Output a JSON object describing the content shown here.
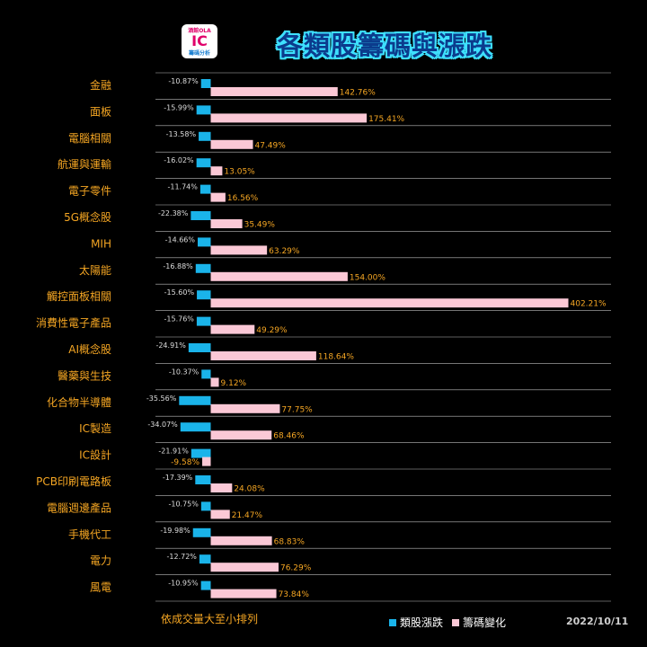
{
  "header": {
    "logo_text_top": "酒館OLA",
    "logo_mark": "IC",
    "logo_text_bottom": "籌碼分析",
    "title": "各類股籌碼與漲跌"
  },
  "footer": {
    "note": "依成交量大至小排列",
    "date": "2022/10/11"
  },
  "colors": {
    "background": "#000000",
    "negative_bar": "#1ab4ea",
    "positive_bar": "#fbc8d6",
    "label_orange": "#f5a623",
    "grid_line": "#bbbbbb"
  },
  "chart_data": {
    "type": "bar",
    "orientation": "horizontal",
    "categories": [
      "金融",
      "面板",
      "電腦相關",
      "航運與運輸",
      "電子零件",
      "5G概念股",
      "MIH",
      "太陽能",
      "觸控面板相關",
      "消費性電子產品",
      "AI概念股",
      "醫藥與生技",
      "化合物半導體",
      "IC製造",
      "IC設計",
      "PCB印刷電路板",
      "電腦週邊產品",
      "手機代工",
      "電力",
      "風電"
    ],
    "series": [
      {
        "name": "類股漲跌",
        "values": [
          -10.87,
          -15.99,
          -13.58,
          -16.02,
          -11.74,
          -22.38,
          -14.66,
          -16.88,
          -15.6,
          -15.76,
          -24.91,
          -10.37,
          -35.56,
          -34.07,
          -21.91,
          -17.39,
          -10.75,
          -19.98,
          -12.72,
          -10.95
        ],
        "labels": [
          "-10.87%",
          "-15.99%",
          "-13.58%",
          "-16.02%",
          "-11.74%",
          "-22.38%",
          "-14.66%",
          "-16.88%",
          "-15.60%",
          "-15.76%",
          "-24.91%",
          "-10.37%",
          "-35.56%",
          "-34.07%",
          "-21.91%",
          "-17.39%",
          "-10.75%",
          "-19.98%",
          "-12.72%",
          "-10.95%"
        ],
        "color": "#1ab4ea"
      },
      {
        "name": "籌碼變化",
        "values": [
          142.76,
          175.41,
          47.49,
          13.05,
          16.56,
          35.49,
          63.29,
          154.0,
          402.21,
          49.29,
          118.64,
          9.12,
          77.75,
          68.46,
          -9.58,
          24.08,
          21.47,
          68.83,
          76.29,
          73.84
        ],
        "labels": [
          "142.76%",
          "175.41%",
          "47.49%",
          "13.05%",
          "16.56%",
          "35.49%",
          "63.29%",
          "154.00%",
          "402.21%",
          "49.29%",
          "118.64%",
          "9.12%",
          "77.75%",
          "68.46%",
          "-9.58%",
          "24.08%",
          "21.47%",
          "68.83%",
          "76.29%",
          "73.84%"
        ],
        "color": "#fbc8d6"
      }
    ],
    "legend_position": "bottom",
    "grid": "horizontal-separators"
  }
}
